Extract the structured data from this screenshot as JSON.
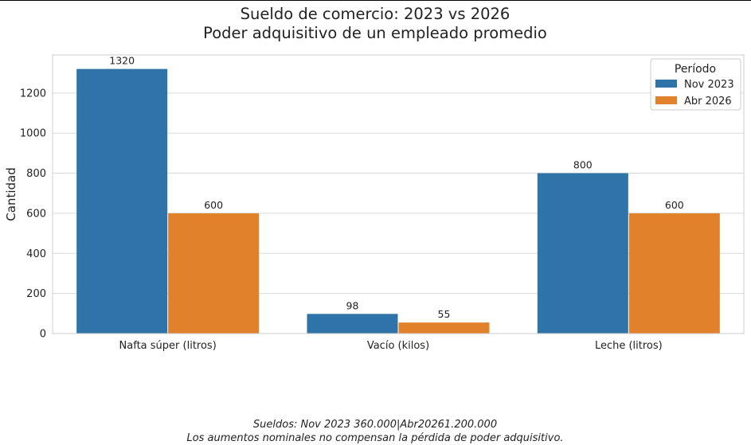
{
  "chart_data": {
    "type": "bar",
    "title": "Sueldo de comercio: 2023 vs 2026",
    "subtitle": "Poder adquisitivo de un empleado promedio",
    "xlabel": "",
    "ylabel": "Cantidad",
    "categories": [
      "Nafta súper (litros)",
      "Vacío (kilos)",
      "Leche (litros)"
    ],
    "series": [
      {
        "name": "Nov 2023",
        "values": [
          1320,
          98,
          800
        ],
        "color": "#2f74a8"
      },
      {
        "name": "Abr 2026",
        "values": [
          600,
          55,
          600
        ],
        "color": "#e2812b"
      }
    ],
    "ylim": [
      0,
      1390
    ],
    "yticks": [
      0,
      200,
      400,
      600,
      800,
      1000,
      1200
    ],
    "grid": true,
    "legend": {
      "title": "Período",
      "placement": "top-right"
    },
    "data_labels": true
  },
  "caption": {
    "line1": "Sueldos: Nov 2023 360.000|Abr20261.200.000",
    "line2": "Los aumentos nominales no compensan la pérdida de poder adquisitivo."
  },
  "colors": {
    "grid": "#d9d9d9",
    "frame": "#cccccc",
    "text": "#222222"
  }
}
